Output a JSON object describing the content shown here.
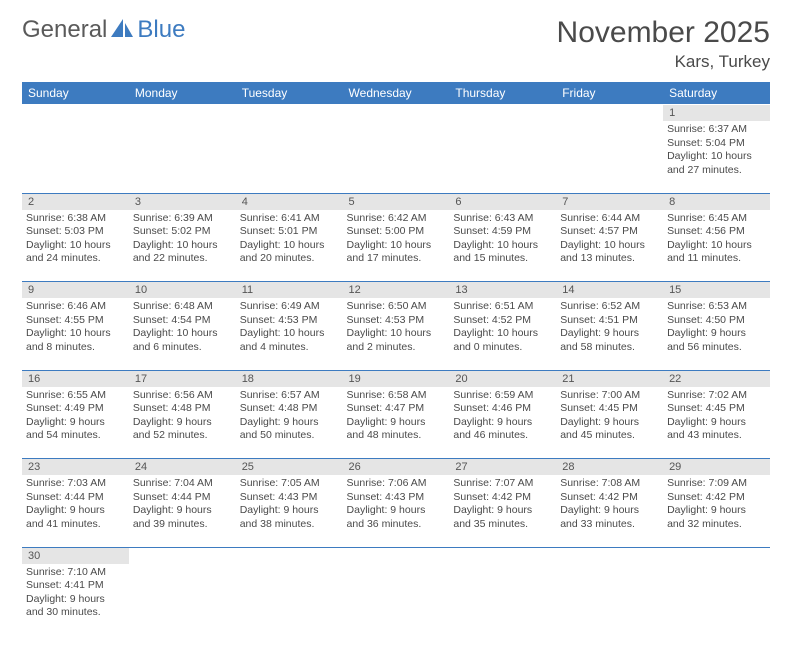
{
  "logo": {
    "text1": "General",
    "text2": "Blue"
  },
  "title": "November 2025",
  "subtitle": "Kars, Turkey",
  "colors": {
    "header_bg": "#3d7bc0",
    "header_fg": "#ffffff",
    "daynum_bg": "#e5e5e5",
    "sep": "#3d7bc0",
    "text": "#4a4a4a"
  },
  "day_headers": [
    "Sunday",
    "Monday",
    "Tuesday",
    "Wednesday",
    "Thursday",
    "Friday",
    "Saturday"
  ],
  "weeks": [
    [
      null,
      null,
      null,
      null,
      null,
      null,
      {
        "n": "1",
        "sr": "Sunrise: 6:37 AM",
        "ss": "Sunset: 5:04 PM",
        "dl": "Daylight: 10 hours and 27 minutes."
      }
    ],
    [
      {
        "n": "2",
        "sr": "Sunrise: 6:38 AM",
        "ss": "Sunset: 5:03 PM",
        "dl": "Daylight: 10 hours and 24 minutes."
      },
      {
        "n": "3",
        "sr": "Sunrise: 6:39 AM",
        "ss": "Sunset: 5:02 PM",
        "dl": "Daylight: 10 hours and 22 minutes."
      },
      {
        "n": "4",
        "sr": "Sunrise: 6:41 AM",
        "ss": "Sunset: 5:01 PM",
        "dl": "Daylight: 10 hours and 20 minutes."
      },
      {
        "n": "5",
        "sr": "Sunrise: 6:42 AM",
        "ss": "Sunset: 5:00 PM",
        "dl": "Daylight: 10 hours and 17 minutes."
      },
      {
        "n": "6",
        "sr": "Sunrise: 6:43 AM",
        "ss": "Sunset: 4:59 PM",
        "dl": "Daylight: 10 hours and 15 minutes."
      },
      {
        "n": "7",
        "sr": "Sunrise: 6:44 AM",
        "ss": "Sunset: 4:57 PM",
        "dl": "Daylight: 10 hours and 13 minutes."
      },
      {
        "n": "8",
        "sr": "Sunrise: 6:45 AM",
        "ss": "Sunset: 4:56 PM",
        "dl": "Daylight: 10 hours and 11 minutes."
      }
    ],
    [
      {
        "n": "9",
        "sr": "Sunrise: 6:46 AM",
        "ss": "Sunset: 4:55 PM",
        "dl": "Daylight: 10 hours and 8 minutes."
      },
      {
        "n": "10",
        "sr": "Sunrise: 6:48 AM",
        "ss": "Sunset: 4:54 PM",
        "dl": "Daylight: 10 hours and 6 minutes."
      },
      {
        "n": "11",
        "sr": "Sunrise: 6:49 AM",
        "ss": "Sunset: 4:53 PM",
        "dl": "Daylight: 10 hours and 4 minutes."
      },
      {
        "n": "12",
        "sr": "Sunrise: 6:50 AM",
        "ss": "Sunset: 4:53 PM",
        "dl": "Daylight: 10 hours and 2 minutes."
      },
      {
        "n": "13",
        "sr": "Sunrise: 6:51 AM",
        "ss": "Sunset: 4:52 PM",
        "dl": "Daylight: 10 hours and 0 minutes."
      },
      {
        "n": "14",
        "sr": "Sunrise: 6:52 AM",
        "ss": "Sunset: 4:51 PM",
        "dl": "Daylight: 9 hours and 58 minutes."
      },
      {
        "n": "15",
        "sr": "Sunrise: 6:53 AM",
        "ss": "Sunset: 4:50 PM",
        "dl": "Daylight: 9 hours and 56 minutes."
      }
    ],
    [
      {
        "n": "16",
        "sr": "Sunrise: 6:55 AM",
        "ss": "Sunset: 4:49 PM",
        "dl": "Daylight: 9 hours and 54 minutes."
      },
      {
        "n": "17",
        "sr": "Sunrise: 6:56 AM",
        "ss": "Sunset: 4:48 PM",
        "dl": "Daylight: 9 hours and 52 minutes."
      },
      {
        "n": "18",
        "sr": "Sunrise: 6:57 AM",
        "ss": "Sunset: 4:48 PM",
        "dl": "Daylight: 9 hours and 50 minutes."
      },
      {
        "n": "19",
        "sr": "Sunrise: 6:58 AM",
        "ss": "Sunset: 4:47 PM",
        "dl": "Daylight: 9 hours and 48 minutes."
      },
      {
        "n": "20",
        "sr": "Sunrise: 6:59 AM",
        "ss": "Sunset: 4:46 PM",
        "dl": "Daylight: 9 hours and 46 minutes."
      },
      {
        "n": "21",
        "sr": "Sunrise: 7:00 AM",
        "ss": "Sunset: 4:45 PM",
        "dl": "Daylight: 9 hours and 45 minutes."
      },
      {
        "n": "22",
        "sr": "Sunrise: 7:02 AM",
        "ss": "Sunset: 4:45 PM",
        "dl": "Daylight: 9 hours and 43 minutes."
      }
    ],
    [
      {
        "n": "23",
        "sr": "Sunrise: 7:03 AM",
        "ss": "Sunset: 4:44 PM",
        "dl": "Daylight: 9 hours and 41 minutes."
      },
      {
        "n": "24",
        "sr": "Sunrise: 7:04 AM",
        "ss": "Sunset: 4:44 PM",
        "dl": "Daylight: 9 hours and 39 minutes."
      },
      {
        "n": "25",
        "sr": "Sunrise: 7:05 AM",
        "ss": "Sunset: 4:43 PM",
        "dl": "Daylight: 9 hours and 38 minutes."
      },
      {
        "n": "26",
        "sr": "Sunrise: 7:06 AM",
        "ss": "Sunset: 4:43 PM",
        "dl": "Daylight: 9 hours and 36 minutes."
      },
      {
        "n": "27",
        "sr": "Sunrise: 7:07 AM",
        "ss": "Sunset: 4:42 PM",
        "dl": "Daylight: 9 hours and 35 minutes."
      },
      {
        "n": "28",
        "sr": "Sunrise: 7:08 AM",
        "ss": "Sunset: 4:42 PM",
        "dl": "Daylight: 9 hours and 33 minutes."
      },
      {
        "n": "29",
        "sr": "Sunrise: 7:09 AM",
        "ss": "Sunset: 4:42 PM",
        "dl": "Daylight: 9 hours and 32 minutes."
      }
    ],
    [
      {
        "n": "30",
        "sr": "Sunrise: 7:10 AM",
        "ss": "Sunset: 4:41 PM",
        "dl": "Daylight: 9 hours and 30 minutes."
      },
      null,
      null,
      null,
      null,
      null,
      null
    ]
  ]
}
